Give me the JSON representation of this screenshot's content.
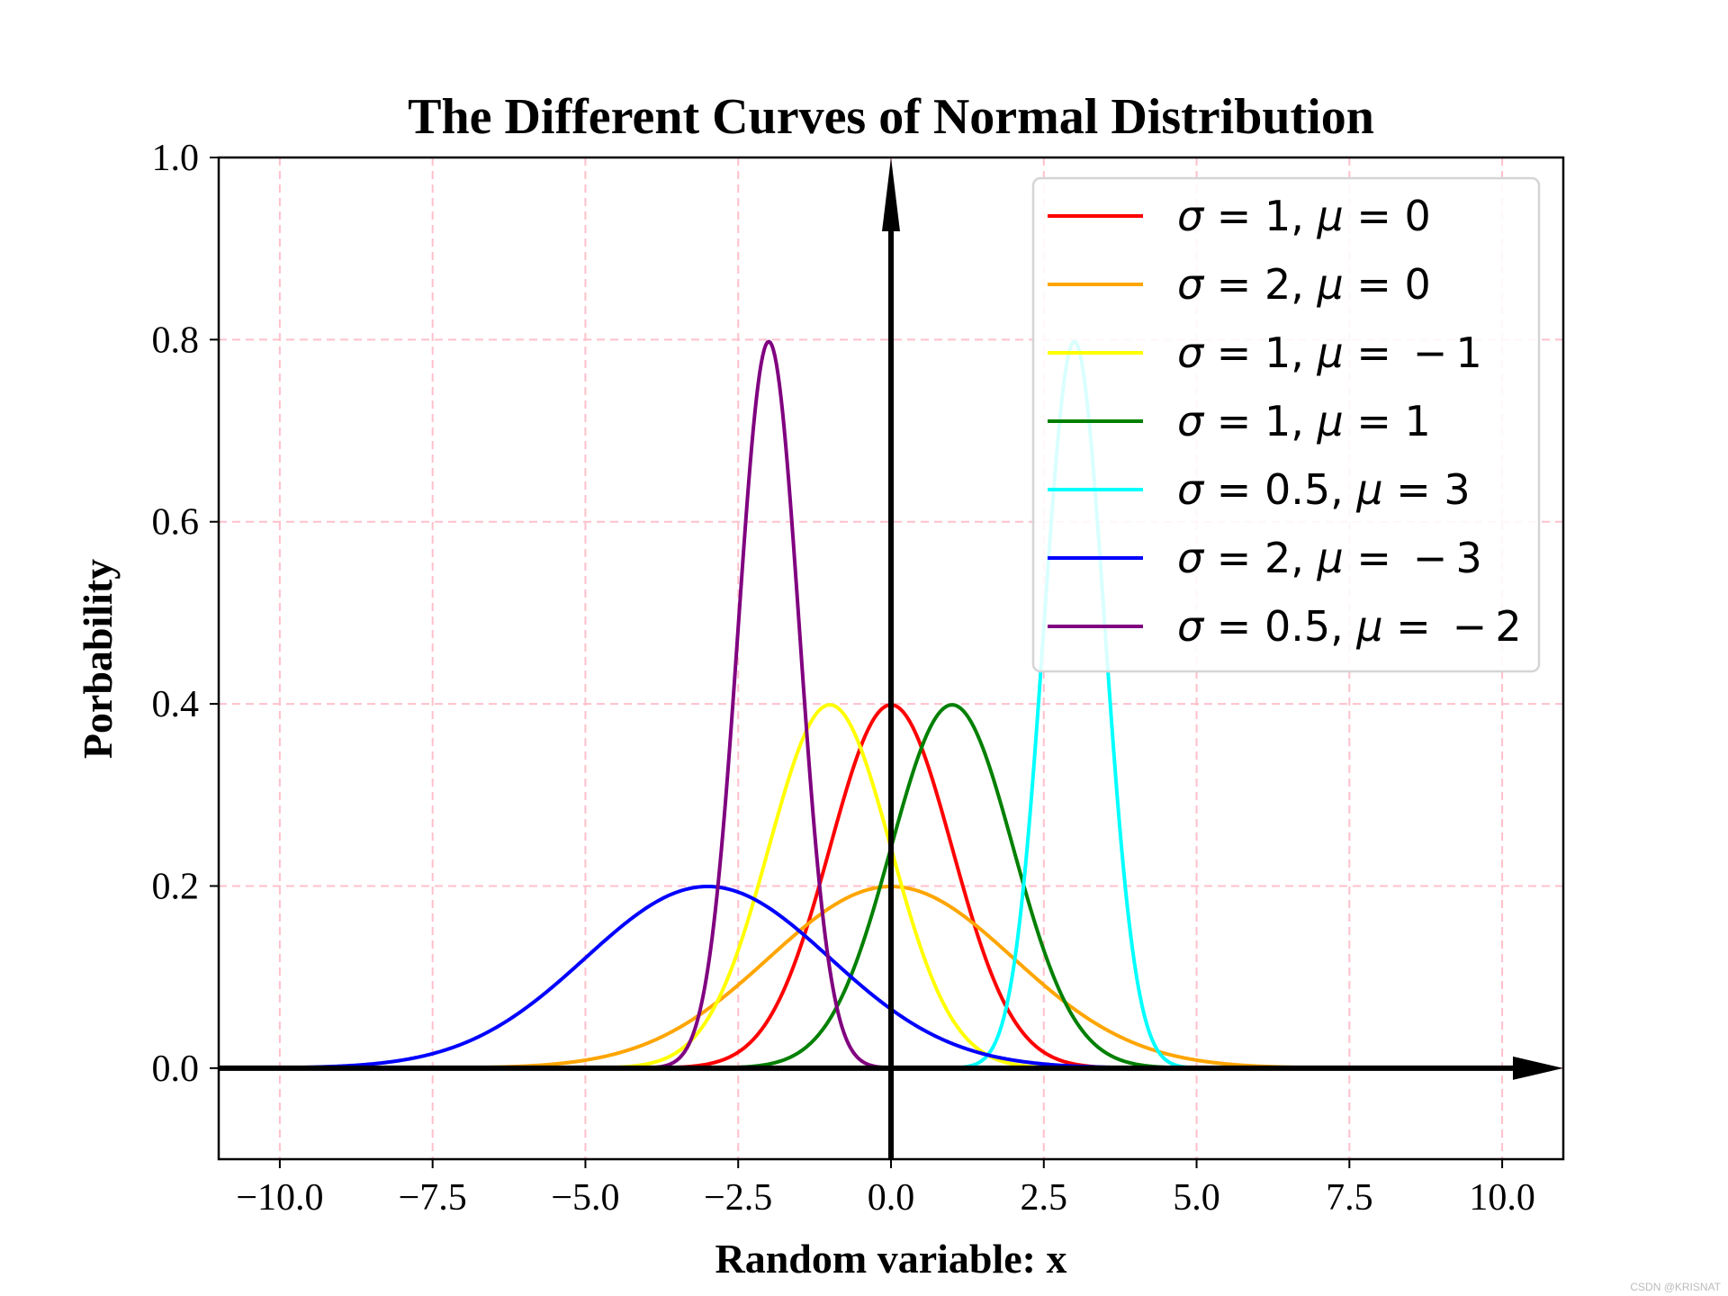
{
  "chart_data": {
    "type": "line",
    "title": "The Different Curves of Normal Distribution",
    "xlabel": "Random variable: x",
    "ylabel": "Porbability",
    "xlim": [
      -11,
      11
    ],
    "ylim": [
      -0.1,
      1.0
    ],
    "x_range": [
      -10,
      10
    ],
    "xticks": [
      -10.0,
      -7.5,
      -5.0,
      -2.5,
      0.0,
      2.5,
      5.0,
      7.5,
      10.0
    ],
    "xtick_labels": [
      "−10.0",
      "−7.5",
      "−5.0",
      "−2.5",
      "0.0",
      "2.5",
      "5.0",
      "7.5",
      "10.0"
    ],
    "yticks": [
      0.0,
      0.2,
      0.4,
      0.6,
      0.8,
      1.0
    ],
    "ytick_labels": [
      "0.0",
      "0.2",
      "0.4",
      "0.6",
      "0.8",
      "1.0"
    ],
    "grid": true,
    "grid_color": "#ffc0cb",
    "legend_position": "top-right",
    "series": [
      {
        "sigma": 1,
        "mu": 0,
        "color": "#ff0000",
        "legend": {
          "a": "1",
          "b": "0"
        }
      },
      {
        "sigma": 2,
        "mu": 0,
        "color": "#ffa500",
        "legend": {
          "a": "2",
          "b": "0"
        }
      },
      {
        "sigma": 1,
        "mu": -1,
        "color": "#ffff00",
        "legend": {
          "a": "1",
          "b": " − 1"
        }
      },
      {
        "sigma": 1,
        "mu": 1,
        "color": "#008000",
        "legend": {
          "a": "1",
          "b": "1"
        }
      },
      {
        "sigma": 0.5,
        "mu": 3,
        "color": "#00ffff",
        "legend": {
          "a": "0.5",
          "b": "3"
        }
      },
      {
        "sigma": 2,
        "mu": -3,
        "color": "#0000ff",
        "legend": {
          "a": "2",
          "b": " − 3"
        }
      },
      {
        "sigma": 0.5,
        "mu": -2,
        "color": "#800080",
        "legend": {
          "a": "0.5",
          "b": " − 2"
        }
      }
    ]
  },
  "watermark": "CSDN @KRISNAT"
}
